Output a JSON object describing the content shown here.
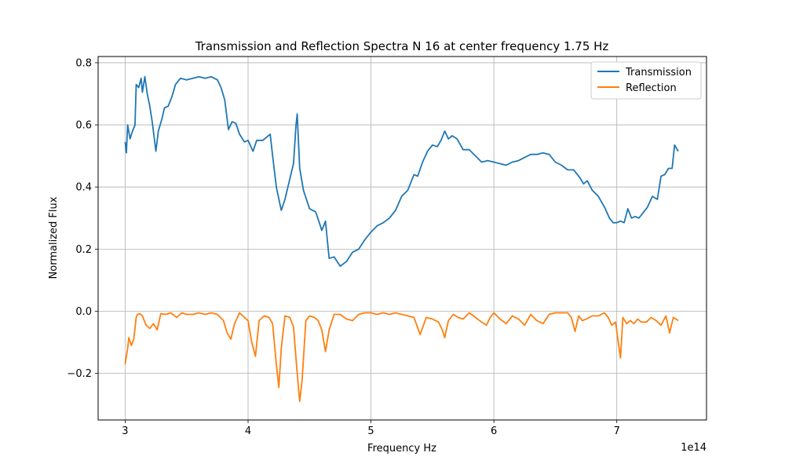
{
  "chart_data": {
    "type": "line",
    "title": "Transmission and Reflection Spectra N 16 at center frequency 1.75 Hz",
    "xlabel": "Frequency Hz",
    "ylabel": "Normalized Flux",
    "x_offset_label": "1e14",
    "xlim": [
      2.78,
      7.73
    ],
    "ylim": [
      -0.35,
      0.82
    ],
    "x_ticks": [
      3,
      4,
      5,
      6,
      7
    ],
    "x_tick_labels": [
      "3",
      "4",
      "5",
      "6",
      "7"
    ],
    "y_ticks": [
      -0.2,
      0.0,
      0.2,
      0.4,
      0.6,
      0.8
    ],
    "y_tick_labels": [
      "−0.2",
      "0.0",
      "0.2",
      "0.4",
      "0.6",
      "0.8"
    ],
    "grid": true,
    "legend": "top-right",
    "series": [
      {
        "name": "Transmission",
        "color": "#1f77b4",
        "points": [
          [
            3.0,
            0.545
          ],
          [
            3.01,
            0.51
          ],
          [
            3.02,
            0.6
          ],
          [
            3.04,
            0.555
          ],
          [
            3.06,
            0.58
          ],
          [
            3.08,
            0.6
          ],
          [
            3.09,
            0.73
          ],
          [
            3.11,
            0.72
          ],
          [
            3.13,
            0.75
          ],
          [
            3.14,
            0.705
          ],
          [
            3.16,
            0.755
          ],
          [
            3.18,
            0.7
          ],
          [
            3.2,
            0.66
          ],
          [
            3.22,
            0.61
          ],
          [
            3.25,
            0.515
          ],
          [
            3.27,
            0.58
          ],
          [
            3.3,
            0.62
          ],
          [
            3.32,
            0.655
          ],
          [
            3.35,
            0.66
          ],
          [
            3.38,
            0.69
          ],
          [
            3.41,
            0.73
          ],
          [
            3.45,
            0.75
          ],
          [
            3.5,
            0.745
          ],
          [
            3.55,
            0.75
          ],
          [
            3.6,
            0.755
          ],
          [
            3.65,
            0.75
          ],
          [
            3.7,
            0.755
          ],
          [
            3.75,
            0.745
          ],
          [
            3.78,
            0.72
          ],
          [
            3.81,
            0.68
          ],
          [
            3.84,
            0.585
          ],
          [
            3.87,
            0.61
          ],
          [
            3.9,
            0.605
          ],
          [
            3.93,
            0.57
          ],
          [
            3.97,
            0.545
          ],
          [
            4.0,
            0.55
          ],
          [
            4.04,
            0.515
          ],
          [
            4.07,
            0.55
          ],
          [
            4.12,
            0.55
          ],
          [
            4.18,
            0.57
          ],
          [
            4.2,
            0.5
          ],
          [
            4.23,
            0.4
          ],
          [
            4.27,
            0.325
          ],
          [
            4.3,
            0.36
          ],
          [
            4.33,
            0.41
          ],
          [
            4.37,
            0.475
          ],
          [
            4.39,
            0.6
          ],
          [
            4.4,
            0.635
          ],
          [
            4.42,
            0.46
          ],
          [
            4.45,
            0.39
          ],
          [
            4.5,
            0.33
          ],
          [
            4.55,
            0.32
          ],
          [
            4.58,
            0.285
          ],
          [
            4.6,
            0.26
          ],
          [
            4.63,
            0.29
          ],
          [
            4.66,
            0.17
          ],
          [
            4.7,
            0.175
          ],
          [
            4.75,
            0.145
          ],
          [
            4.8,
            0.16
          ],
          [
            4.85,
            0.19
          ],
          [
            4.9,
            0.2
          ],
          [
            4.95,
            0.23
          ],
          [
            5.0,
            0.255
          ],
          [
            5.05,
            0.275
          ],
          [
            5.1,
            0.285
          ],
          [
            5.15,
            0.3
          ],
          [
            5.2,
            0.325
          ],
          [
            5.25,
            0.37
          ],
          [
            5.3,
            0.39
          ],
          [
            5.35,
            0.44
          ],
          [
            5.38,
            0.435
          ],
          [
            5.42,
            0.48
          ],
          [
            5.46,
            0.515
          ],
          [
            5.5,
            0.535
          ],
          [
            5.54,
            0.53
          ],
          [
            5.57,
            0.55
          ],
          [
            5.6,
            0.58
          ],
          [
            5.63,
            0.555
          ],
          [
            5.66,
            0.565
          ],
          [
            5.7,
            0.555
          ],
          [
            5.75,
            0.52
          ],
          [
            5.8,
            0.52
          ],
          [
            5.85,
            0.5
          ],
          [
            5.9,
            0.48
          ],
          [
            5.95,
            0.485
          ],
          [
            6.0,
            0.48
          ],
          [
            6.05,
            0.475
          ],
          [
            6.1,
            0.47
          ],
          [
            6.15,
            0.48
          ],
          [
            6.2,
            0.485
          ],
          [
            6.25,
            0.495
          ],
          [
            6.3,
            0.505
          ],
          [
            6.35,
            0.505
          ],
          [
            6.4,
            0.51
          ],
          [
            6.45,
            0.505
          ],
          [
            6.5,
            0.48
          ],
          [
            6.55,
            0.47
          ],
          [
            6.6,
            0.455
          ],
          [
            6.65,
            0.455
          ],
          [
            6.68,
            0.44
          ],
          [
            6.7,
            0.43
          ],
          [
            6.73,
            0.41
          ],
          [
            6.76,
            0.42
          ],
          [
            6.8,
            0.39
          ],
          [
            6.85,
            0.37
          ],
          [
            6.9,
            0.335
          ],
          [
            6.94,
            0.3
          ],
          [
            6.97,
            0.285
          ],
          [
            7.0,
            0.285
          ],
          [
            7.03,
            0.29
          ],
          [
            7.06,
            0.285
          ],
          [
            7.09,
            0.33
          ],
          [
            7.12,
            0.3
          ],
          [
            7.15,
            0.305
          ],
          [
            7.18,
            0.3
          ],
          [
            7.21,
            0.315
          ],
          [
            7.25,
            0.335
          ],
          [
            7.29,
            0.37
          ],
          [
            7.33,
            0.36
          ],
          [
            7.36,
            0.435
          ],
          [
            7.39,
            0.44
          ],
          [
            7.42,
            0.46
          ],
          [
            7.45,
            0.46
          ],
          [
            7.47,
            0.535
          ],
          [
            7.5,
            0.515
          ]
        ]
      },
      {
        "name": "Reflection",
        "color": "#ff7f0e",
        "points": [
          [
            3.0,
            -0.17
          ],
          [
            3.02,
            -0.12
          ],
          [
            3.03,
            -0.085
          ],
          [
            3.05,
            -0.11
          ],
          [
            3.07,
            -0.09
          ],
          [
            3.09,
            -0.02
          ],
          [
            3.1,
            -0.01
          ],
          [
            3.12,
            -0.008
          ],
          [
            3.14,
            -0.015
          ],
          [
            3.17,
            -0.045
          ],
          [
            3.2,
            -0.055
          ],
          [
            3.23,
            -0.04
          ],
          [
            3.26,
            -0.06
          ],
          [
            3.29,
            -0.008
          ],
          [
            3.33,
            -0.01
          ],
          [
            3.37,
            -0.005
          ],
          [
            3.42,
            -0.02
          ],
          [
            3.46,
            -0.005
          ],
          [
            3.5,
            -0.01
          ],
          [
            3.55,
            -0.01
          ],
          [
            3.6,
            -0.005
          ],
          [
            3.65,
            -0.01
          ],
          [
            3.7,
            -0.005
          ],
          [
            3.75,
            -0.01
          ],
          [
            3.8,
            -0.03
          ],
          [
            3.83,
            -0.07
          ],
          [
            3.86,
            -0.09
          ],
          [
            3.89,
            -0.04
          ],
          [
            3.93,
            -0.005
          ],
          [
            3.97,
            -0.02
          ],
          [
            4.0,
            -0.03
          ],
          [
            4.03,
            -0.1
          ],
          [
            4.06,
            -0.145
          ],
          [
            4.09,
            -0.03
          ],
          [
            4.13,
            -0.015
          ],
          [
            4.17,
            -0.02
          ],
          [
            4.2,
            -0.04
          ],
          [
            4.23,
            -0.17
          ],
          [
            4.25,
            -0.245
          ],
          [
            4.27,
            -0.12
          ],
          [
            4.3,
            -0.015
          ],
          [
            4.34,
            -0.02
          ],
          [
            4.37,
            -0.05
          ],
          [
            4.4,
            -0.2
          ],
          [
            4.42,
            -0.29
          ],
          [
            4.44,
            -0.22
          ],
          [
            4.47,
            -0.03
          ],
          [
            4.5,
            -0.015
          ],
          [
            4.54,
            -0.02
          ],
          [
            4.57,
            -0.03
          ],
          [
            4.6,
            -0.06
          ],
          [
            4.63,
            -0.13
          ],
          [
            4.66,
            -0.06
          ],
          [
            4.7,
            -0.01
          ],
          [
            4.75,
            -0.01
          ],
          [
            4.8,
            -0.025
          ],
          [
            4.85,
            -0.03
          ],
          [
            4.9,
            -0.01
          ],
          [
            4.95,
            -0.005
          ],
          [
            5.0,
            -0.005
          ],
          [
            5.05,
            -0.01
          ],
          [
            5.1,
            -0.005
          ],
          [
            5.15,
            -0.01
          ],
          [
            5.2,
            -0.005
          ],
          [
            5.25,
            -0.01
          ],
          [
            5.3,
            -0.015
          ],
          [
            5.35,
            -0.02
          ],
          [
            5.4,
            -0.075
          ],
          [
            5.45,
            -0.02
          ],
          [
            5.5,
            -0.025
          ],
          [
            5.55,
            -0.035
          ],
          [
            5.58,
            -0.06
          ],
          [
            5.6,
            -0.085
          ],
          [
            5.63,
            -0.03
          ],
          [
            5.67,
            -0.01
          ],
          [
            5.71,
            -0.02
          ],
          [
            5.75,
            -0.025
          ],
          [
            5.8,
            -0.005
          ],
          [
            5.85,
            -0.02
          ],
          [
            5.9,
            -0.035
          ],
          [
            5.94,
            -0.045
          ],
          [
            5.97,
            -0.02
          ],
          [
            6.0,
            -0.005
          ],
          [
            6.05,
            -0.025
          ],
          [
            6.1,
            -0.04
          ],
          [
            6.15,
            -0.015
          ],
          [
            6.2,
            -0.025
          ],
          [
            6.25,
            -0.045
          ],
          [
            6.3,
            -0.01
          ],
          [
            6.35,
            -0.03
          ],
          [
            6.4,
            -0.04
          ],
          [
            6.45,
            -0.01
          ],
          [
            6.5,
            -0.005
          ],
          [
            6.55,
            -0.005
          ],
          [
            6.6,
            -0.005
          ],
          [
            6.63,
            -0.02
          ],
          [
            6.66,
            -0.065
          ],
          [
            6.69,
            -0.015
          ],
          [
            6.72,
            -0.03
          ],
          [
            6.75,
            -0.025
          ],
          [
            6.8,
            -0.015
          ],
          [
            6.85,
            -0.015
          ],
          [
            6.9,
            -0.005
          ],
          [
            6.93,
            -0.02
          ],
          [
            6.96,
            -0.045
          ],
          [
            6.99,
            -0.035
          ],
          [
            7.03,
            -0.15
          ],
          [
            7.05,
            -0.02
          ],
          [
            7.08,
            -0.04
          ],
          [
            7.11,
            -0.03
          ],
          [
            7.14,
            -0.04
          ],
          [
            7.17,
            -0.025
          ],
          [
            7.2,
            -0.035
          ],
          [
            7.24,
            -0.035
          ],
          [
            7.28,
            -0.02
          ],
          [
            7.32,
            -0.03
          ],
          [
            7.36,
            -0.045
          ],
          [
            7.4,
            -0.015
          ],
          [
            7.43,
            -0.07
          ],
          [
            7.46,
            -0.02
          ],
          [
            7.5,
            -0.03
          ]
        ]
      }
    ]
  }
}
